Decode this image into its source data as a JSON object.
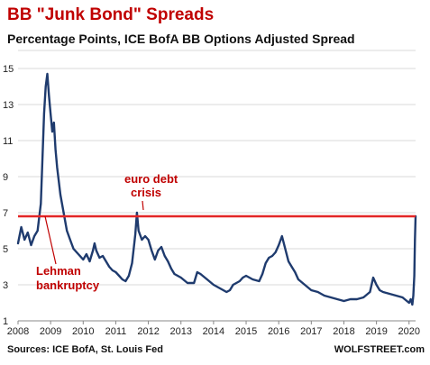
{
  "chart_data": {
    "type": "line",
    "title": "BB \"Junk Bond\" Spreads",
    "subtitle": "Percentage Points, ICE BofA BB Options Adjusted Spread",
    "xlabel": "",
    "ylabel": "",
    "xlim": [
      2008.0,
      2020.2
    ],
    "ylim": [
      1,
      16
    ],
    "x_ticks": [
      "2008",
      "2009",
      "2010",
      "2011",
      "2012",
      "2013",
      "2014",
      "2015",
      "2016",
      "2017",
      "2018",
      "2019",
      "2020"
    ],
    "y_ticks": [
      1,
      3,
      5,
      7,
      9,
      11,
      13,
      15
    ],
    "grid": "horizontal",
    "series": [
      {
        "name": "",
        "color": "#1f3b6e",
        "x": [
          2008.0,
          2008.1,
          2008.2,
          2008.3,
          2008.4,
          2008.5,
          2008.6,
          2008.7,
          2008.75,
          2008.8,
          2008.85,
          2008.9,
          2008.95,
          2009.0,
          2009.05,
          2009.1,
          2009.15,
          2009.2,
          2009.3,
          2009.4,
          2009.5,
          2009.6,
          2009.7,
          2009.8,
          2009.9,
          2010.0,
          2010.1,
          2010.2,
          2010.3,
          2010.35,
          2010.4,
          2010.5,
          2010.6,
          2010.7,
          2010.8,
          2010.9,
          2011.0,
          2011.1,
          2011.2,
          2011.3,
          2011.4,
          2011.5,
          2011.6,
          2011.65,
          2011.7,
          2011.8,
          2011.9,
          2012.0,
          2012.1,
          2012.2,
          2012.3,
          2012.4,
          2012.5,
          2012.6,
          2012.7,
          2012.8,
          2012.9,
          2013.0,
          2013.2,
          2013.4,
          2013.5,
          2013.6,
          2013.8,
          2014.0,
          2014.2,
          2014.4,
          2014.5,
          2014.6,
          2014.8,
          2014.9,
          2015.0,
          2015.2,
          2015.4,
          2015.5,
          2015.6,
          2015.7,
          2015.8,
          2015.9,
          2016.0,
          2016.1,
          2016.2,
          2016.3,
          2016.4,
          2016.5,
          2016.6,
          2016.8,
          2017.0,
          2017.2,
          2017.4,
          2017.6,
          2017.8,
          2018.0,
          2018.2,
          2018.4,
          2018.6,
          2018.8,
          2018.9,
          2019.0,
          2019.1,
          2019.2,
          2019.4,
          2019.6,
          2019.8,
          2020.0,
          2020.05,
          2020.1,
          2020.13,
          2020.16,
          2020.18,
          2020.2
        ],
        "y": [
          5.3,
          6.2,
          5.5,
          5.9,
          5.2,
          5.7,
          6.0,
          7.5,
          10.0,
          12.5,
          14.0,
          14.7,
          13.5,
          12.5,
          11.5,
          12.0,
          10.5,
          9.5,
          8.0,
          7.0,
          6.0,
          5.5,
          5.0,
          4.8,
          4.6,
          4.4,
          4.7,
          4.3,
          4.9,
          5.3,
          4.9,
          4.5,
          4.6,
          4.3,
          4.0,
          3.8,
          3.7,
          3.5,
          3.3,
          3.2,
          3.5,
          4.2,
          5.8,
          7.0,
          6.0,
          5.5,
          5.7,
          5.5,
          4.9,
          4.4,
          4.9,
          5.1,
          4.6,
          4.3,
          3.9,
          3.6,
          3.5,
          3.4,
          3.1,
          3.1,
          3.7,
          3.6,
          3.3,
          3.0,
          2.8,
          2.6,
          2.7,
          3.0,
          3.2,
          3.4,
          3.5,
          3.3,
          3.2,
          3.6,
          4.2,
          4.5,
          4.6,
          4.8,
          5.2,
          5.7,
          5.0,
          4.3,
          4.0,
          3.7,
          3.3,
          3.0,
          2.7,
          2.6,
          2.4,
          2.3,
          2.2,
          2.1,
          2.2,
          2.2,
          2.3,
          2.6,
          3.4,
          3.0,
          2.7,
          2.6,
          2.5,
          2.4,
          2.3,
          2.0,
          2.2,
          1.9,
          2.4,
          3.5,
          5.5,
          6.8
        ]
      }
    ],
    "reference_line": {
      "y": 6.8,
      "color": "#e32626"
    },
    "annotations": [
      {
        "text_lines": [
          "euro debt",
          "crisis"
        ],
        "color": "#c00000"
      },
      {
        "text_lines": [
          "Lehman",
          "bankruptcy"
        ],
        "color": "#c00000"
      }
    ],
    "source": "Sources: ICE BofA, St. Louis Fed",
    "brand": "WOLFSTREET.com"
  }
}
